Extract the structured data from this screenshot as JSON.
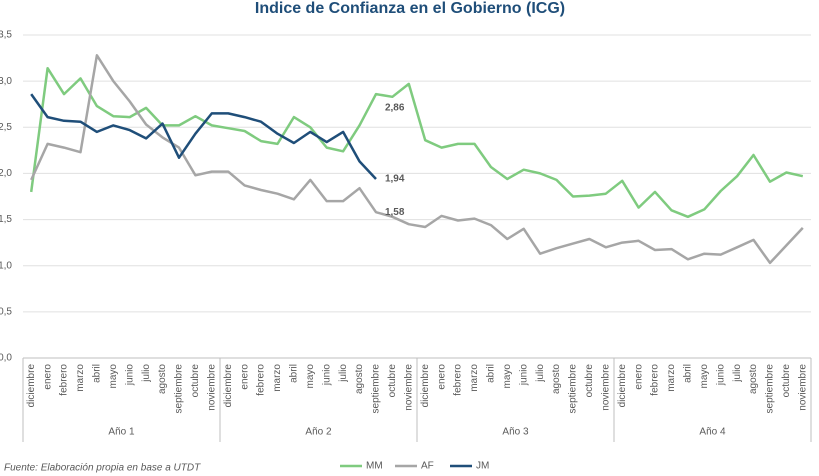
{
  "chart_data": {
    "type": "line",
    "title": "Indice de Confianza en el Gobierno (ICG)",
    "source": "Fuente: Elaboración propia en base a UTDT",
    "categories": [
      "diciembre",
      "enero",
      "febrero",
      "marzo",
      "abril",
      "mayo",
      "junio",
      "julio",
      "agosto",
      "septiembre",
      "octubre",
      "noviembre",
      "diciembre",
      "enero",
      "febrero",
      "marzo",
      "abril",
      "mayo",
      "junio",
      "julio",
      "agosto",
      "septiembre",
      "octubre",
      "noviembre",
      "diciembre",
      "enero",
      "febrero",
      "marzo",
      "abril",
      "mayo",
      "junio",
      "julio",
      "agosto",
      "septiembre",
      "octubre",
      "noviembre",
      "diciembre",
      "enero",
      "febrero",
      "marzo",
      "abril",
      "mayo",
      "junio",
      "julio",
      "agosto",
      "septiembre",
      "octubre",
      "noviembre"
    ],
    "groups": [
      "Año 1",
      "Año 2",
      "Año 3",
      "Año 4"
    ],
    "ylim": [
      0,
      3.5
    ],
    "yticks": [
      {
        "value": 0,
        "label": "0,0"
      },
      {
        "value": 0.5,
        "label": "0,5"
      },
      {
        "value": 1,
        "label": "1,0"
      },
      {
        "value": 1.5,
        "label": "1,5"
      },
      {
        "value": 2,
        "label": "2,0"
      },
      {
        "value": 2.5,
        "label": "2,5"
      },
      {
        "value": 3,
        "label": "3,0"
      },
      {
        "value": 3.5,
        "label": "3,5"
      }
    ],
    "grid": true,
    "legend": "bottom",
    "series": [
      {
        "name": "MM",
        "color": "#7fcb7f",
        "values": [
          1.8,
          3.14,
          2.86,
          3.03,
          2.73,
          2.62,
          2.61,
          2.71,
          2.52,
          2.52,
          2.62,
          2.52,
          2.49,
          2.46,
          2.35,
          2.32,
          2.61,
          2.5,
          2.28,
          2.24,
          2.52,
          2.86,
          2.83,
          2.97,
          2.36,
          2.28,
          2.32,
          2.32,
          2.07,
          1.94,
          2.04,
          2.0,
          1.93,
          1.75,
          1.76,
          1.78,
          1.92,
          1.63,
          1.8,
          1.6,
          1.53,
          1.61,
          1.81,
          1.97,
          2.2,
          1.91,
          2.01,
          1.97
        ],
        "value_labels": [
          null,
          null,
          null,
          null,
          null,
          null,
          null,
          null,
          null,
          null,
          null,
          null,
          null,
          null,
          null,
          null,
          null,
          null,
          null,
          null,
          null,
          "2,86",
          null,
          null,
          null,
          null,
          null,
          null,
          null,
          null,
          null,
          null,
          null,
          null,
          null,
          null,
          null,
          null,
          null,
          null,
          null,
          null,
          null,
          null,
          null,
          null,
          null,
          null
        ]
      },
      {
        "name": "AF",
        "color": "#a6a6a6",
        "values": [
          1.93,
          2.32,
          2.28,
          2.23,
          3.28,
          3.0,
          2.78,
          2.53,
          2.39,
          2.28,
          1.98,
          2.02,
          2.02,
          1.87,
          1.82,
          1.78,
          1.72,
          1.93,
          1.7,
          1.7,
          1.84,
          1.58,
          1.53,
          1.45,
          1.42,
          1.54,
          1.49,
          1.51,
          1.44,
          1.29,
          1.4,
          1.13,
          1.19,
          1.24,
          1.29,
          1.2,
          1.25,
          1.27,
          1.17,
          1.18,
          1.07,
          1.13,
          1.12,
          1.2,
          1.28,
          1.03,
          1.22,
          1.41
        ],
        "value_labels": [
          null,
          null,
          null,
          null,
          null,
          null,
          null,
          null,
          null,
          null,
          null,
          null,
          null,
          null,
          null,
          null,
          null,
          null,
          null,
          null,
          null,
          "1,58",
          null,
          null,
          null,
          null,
          null,
          null,
          null,
          null,
          null,
          null,
          null,
          null,
          null,
          null,
          null,
          null,
          null,
          null,
          null,
          null,
          null,
          null,
          null,
          null,
          null,
          null
        ]
      },
      {
        "name": "JM",
        "color": "#1f4e79",
        "values": [
          2.86,
          2.61,
          2.57,
          2.56,
          2.45,
          2.52,
          2.47,
          2.38,
          2.54,
          2.17,
          2.43,
          2.65,
          2.65,
          2.61,
          2.56,
          2.43,
          2.33,
          2.45,
          2.34,
          2.45,
          2.13,
          1.94,
          null,
          null,
          null,
          null,
          null,
          null,
          null,
          null,
          null,
          null,
          null,
          null,
          null,
          null,
          null,
          null,
          null,
          null,
          null,
          null,
          null,
          null,
          null,
          null,
          null,
          null
        ],
        "value_labels": [
          null,
          null,
          null,
          null,
          null,
          null,
          null,
          null,
          null,
          null,
          null,
          null,
          null,
          null,
          null,
          null,
          null,
          null,
          null,
          null,
          null,
          "1,94",
          null,
          null,
          null,
          null,
          null,
          null,
          null,
          null,
          null,
          null,
          null,
          null,
          null,
          null,
          null,
          null,
          null,
          null,
          null,
          null,
          null,
          null,
          null,
          null,
          null,
          null
        ]
      }
    ]
  }
}
